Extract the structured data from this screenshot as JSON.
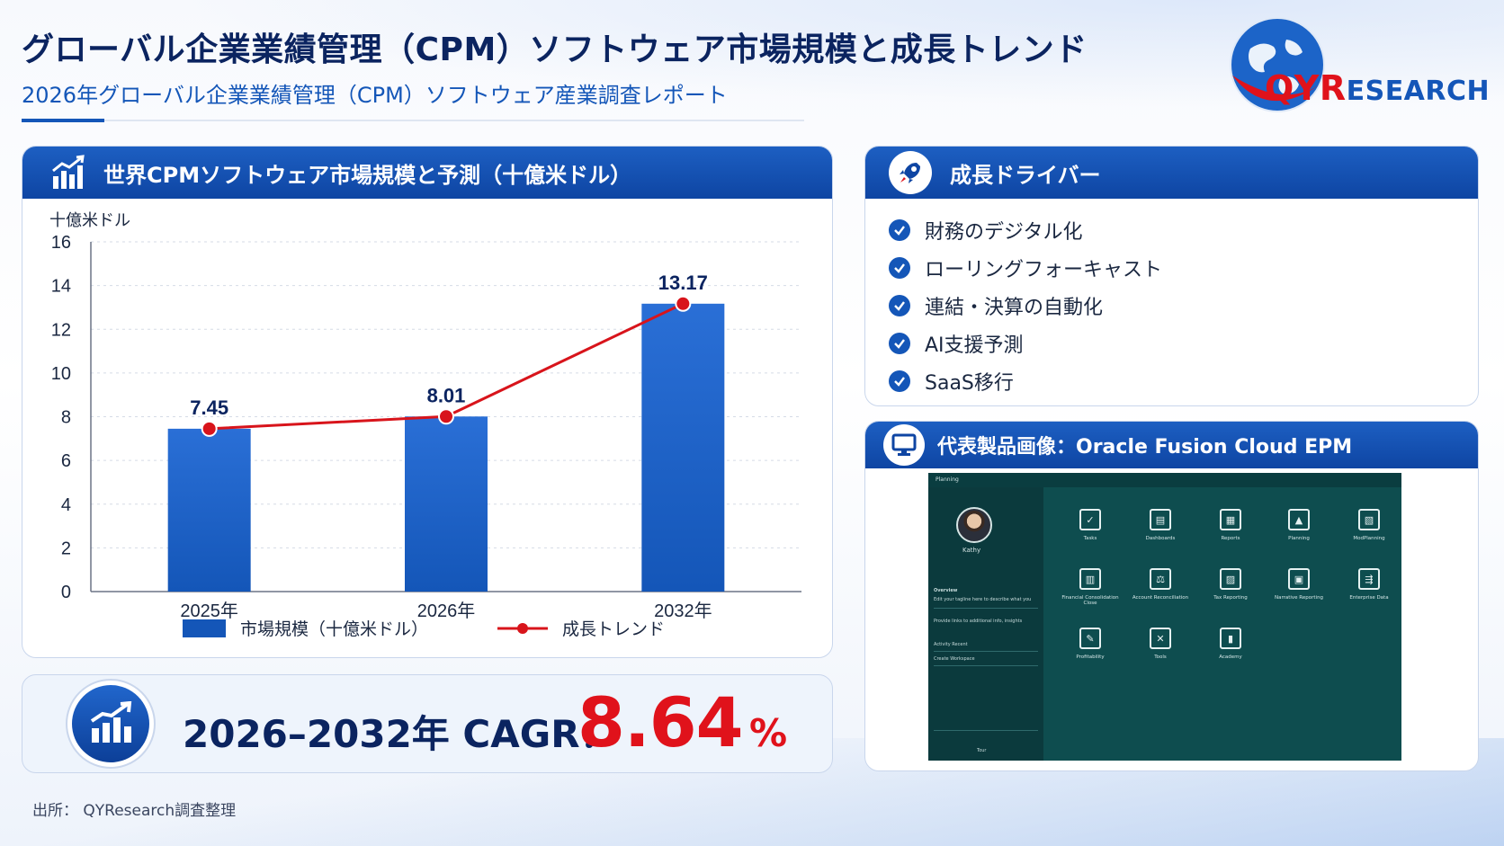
{
  "header": {
    "title": "グローバル企業業績管理（CPM）ソフトウェア市場規模と成長トレンド",
    "subtitle": "2026年グローバル企業業績管理（CPM）ソフトウェア産業調査レポート"
  },
  "logo": {
    "text_qy": "QY",
    "text_r": "R",
    "text_rest": "ESEARCH"
  },
  "chart_panel": {
    "title": "世界CPMソフトウェア市場規模と予測（十億米ドル）"
  },
  "chart_data": {
    "type": "bar",
    "ylabel": "十億米ドル",
    "categories": [
      "2025年",
      "2026年",
      "2032年"
    ],
    "series": [
      {
        "name": "市場規模（十億米ドル）",
        "type": "bar",
        "values": [
          7.45,
          8.01,
          13.17
        ]
      },
      {
        "name": "成長トレンド",
        "type": "line",
        "values": [
          7.45,
          8.01,
          13.17
        ]
      }
    ],
    "data_labels": [
      "7.45",
      "8.01",
      "13.17"
    ],
    "ylim": [
      0,
      16
    ],
    "yticks": [
      0,
      2,
      4,
      6,
      8,
      10,
      12,
      14,
      16
    ],
    "grid": true,
    "legend": "bottom",
    "colors": {
      "bar": "#1456b8",
      "line": "#d8141b"
    }
  },
  "drivers_panel": {
    "title": "成長ドライバー",
    "items": [
      "財務のデジタル化",
      "ローリングフォーキャスト",
      "連結・決算の自動化",
      "AI支援予測",
      "SaaS移行"
    ]
  },
  "product_panel": {
    "title": "代表製品画像：Oracle Fusion Cloud EPM",
    "screenshot": {
      "app_title": "Planning",
      "user_name": "Kathy",
      "overview": "Overview",
      "overview_hint": "Edit your tagline here to describe what you",
      "links_hint": "Provide links to additional info, insights",
      "tabs": "Activity   Recent",
      "workspace": "Create Workspace",
      "tour": "Tour",
      "tiles": [
        "Tasks",
        "Dashboards",
        "Reports",
        "Planning",
        "ModPlanning",
        "Financial Consolidation Close",
        "Account Reconciliation",
        "Tax Reporting",
        "Narrative Reporting",
        "Enterprise Data",
        "Profitability",
        "Tools",
        "Academy"
      ]
    }
  },
  "cagr": {
    "label": "2026–2032年 CAGR：",
    "value": "8.64",
    "unit": "%"
  },
  "source": "出所： QYResearch調査整理"
}
